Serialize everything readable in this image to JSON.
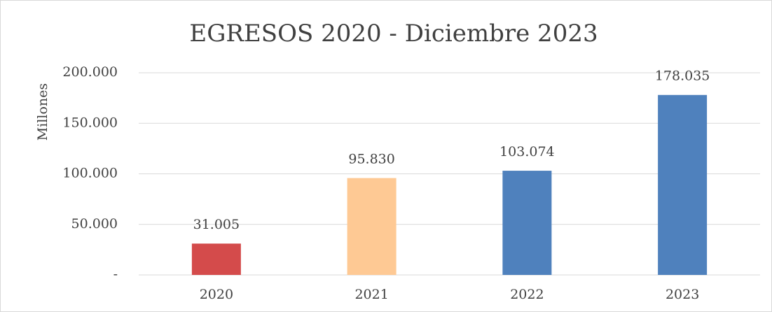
{
  "chart_data": {
    "type": "bar",
    "title": "EGRESOS 2020 -  Diciembre 2023",
    "y_label": "Millones",
    "categories": [
      "2020",
      "2021",
      "2022",
      "2023"
    ],
    "values": [
      31005,
      95830,
      103074,
      178035
    ],
    "value_labels": [
      "31.005",
      "95.830",
      "103.074",
      "178.035"
    ],
    "colors": [
      "#d44b4b",
      "#fec994",
      "#4f81bd",
      "#4f81bd"
    ],
    "ylim": [
      0,
      200000
    ],
    "yticks": [
      {
        "value": 0,
        "label": "-"
      },
      {
        "value": 50000,
        "label": "50.000"
      },
      {
        "value": 100000,
        "label": "100.000"
      },
      {
        "value": 150000,
        "label": "150.000"
      },
      {
        "value": 200000,
        "label": "200.000"
      }
    ],
    "grid": true
  }
}
